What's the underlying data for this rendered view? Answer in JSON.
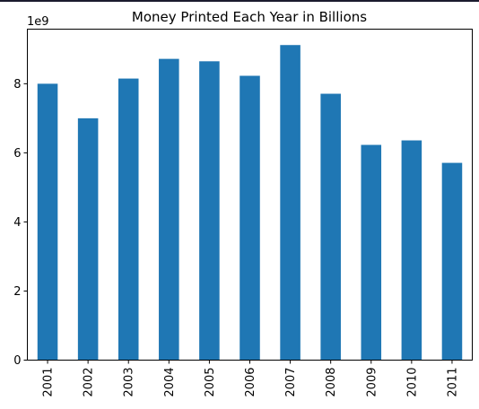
{
  "chart_data": {
    "type": "bar",
    "title": "Money Printed Each Year in Billions",
    "xlabel": "",
    "ylabel": "",
    "y_offset_label": "1e9",
    "categories": [
      "2001",
      "2002",
      "2003",
      "2004",
      "2005",
      "2006",
      "2007",
      "2008",
      "2009",
      "2010",
      "2011"
    ],
    "values": [
      8.0,
      7.0,
      8.15,
      8.72,
      8.65,
      8.23,
      9.12,
      7.71,
      6.23,
      6.36,
      5.71
    ],
    "ylim": [
      0,
      9.58
    ],
    "yticks": [
      0,
      2,
      4,
      6,
      8
    ],
    "bar_color": "#1f77b4",
    "grid": false,
    "legend": "none"
  }
}
